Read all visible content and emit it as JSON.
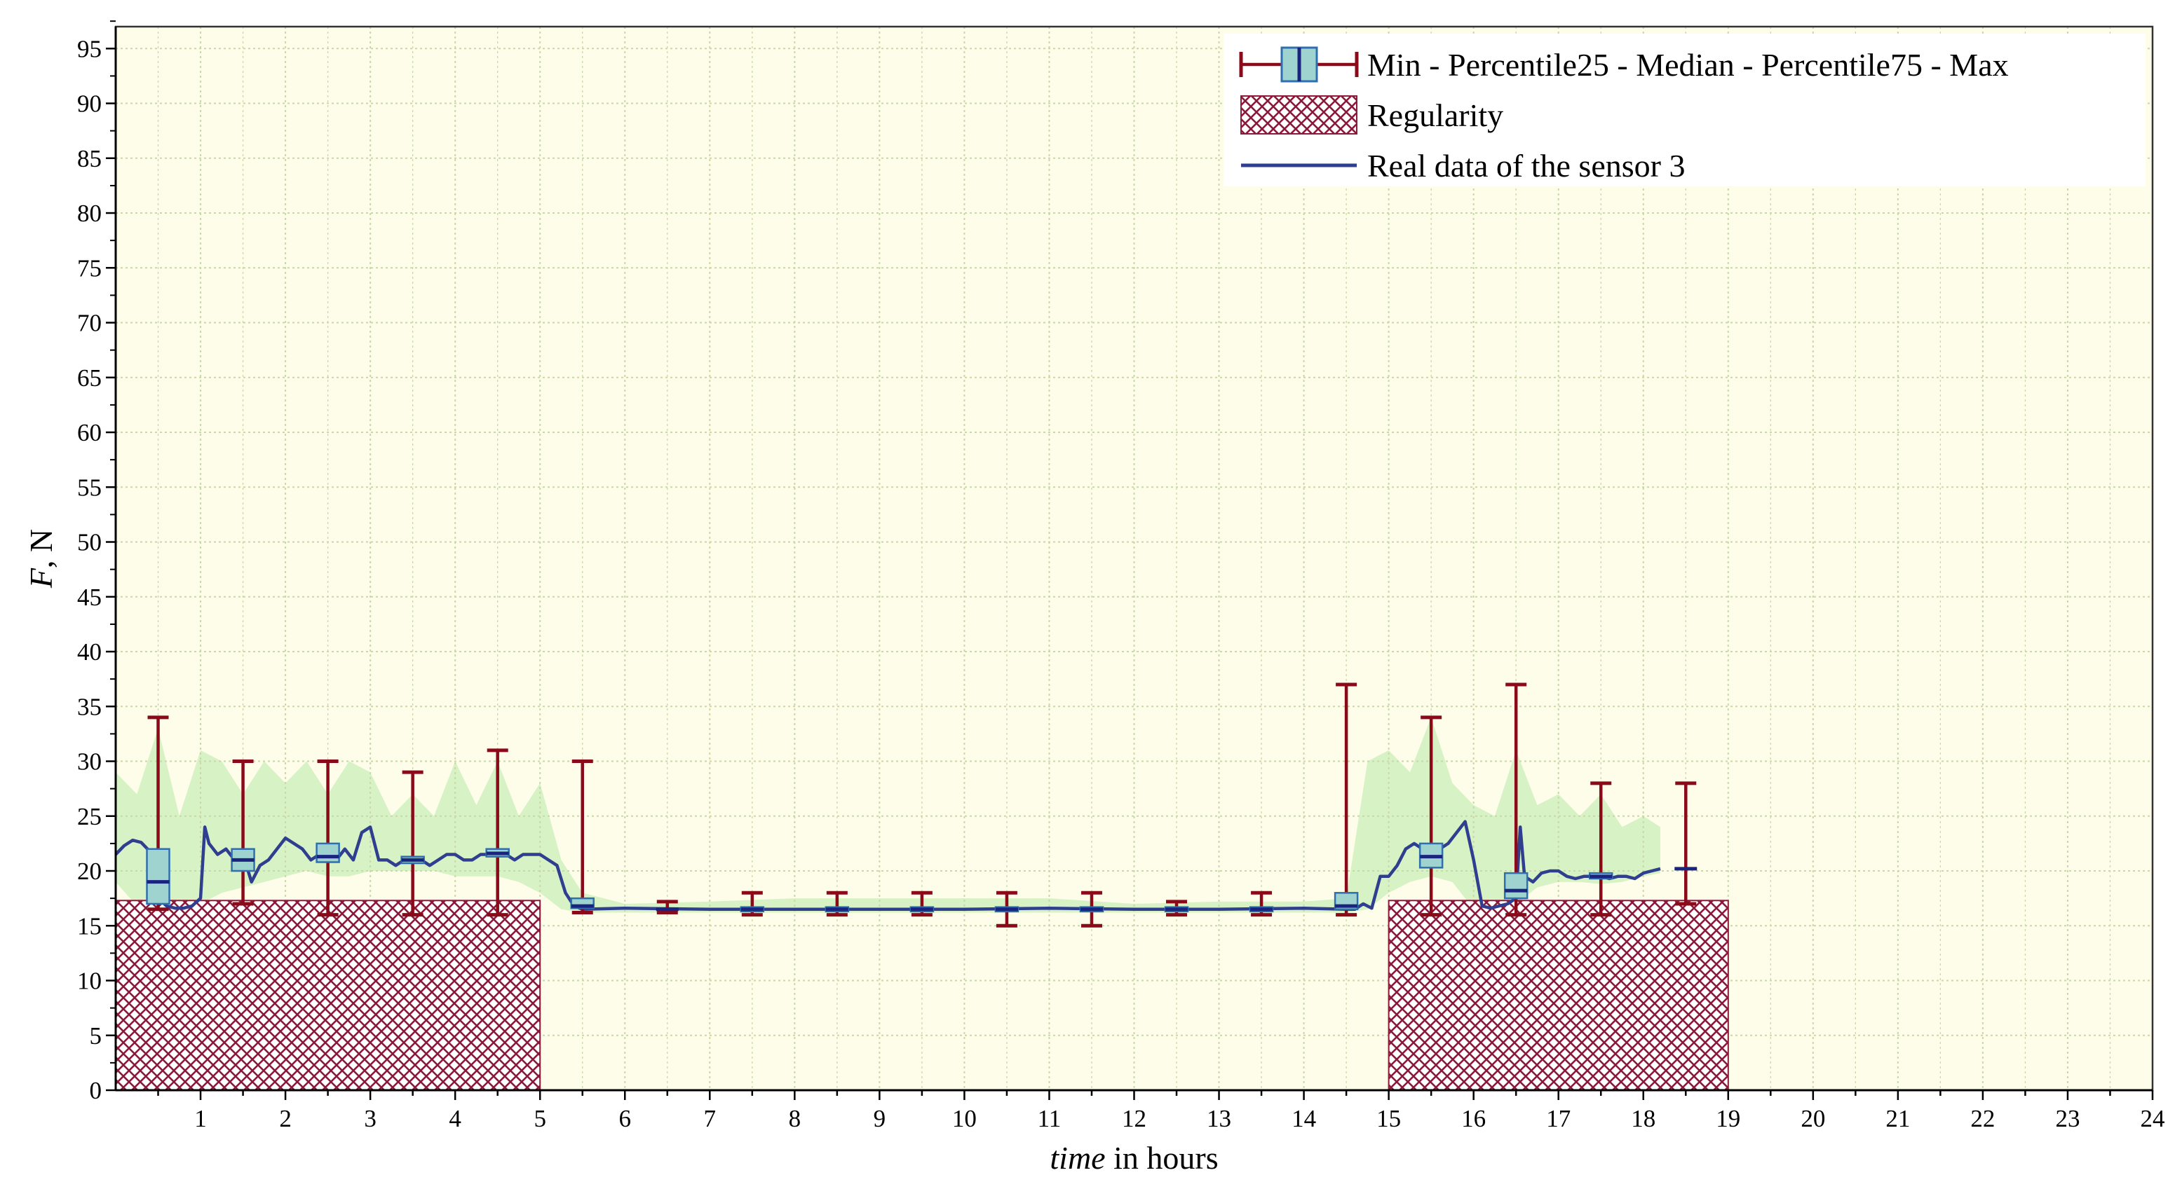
{
  "chart_data": {
    "type": "box+area+line",
    "xlabel_italic": "time",
    "xlabel_rest": " in hours",
    "ylabel_italic": "F",
    "ylabel_rest": ", N",
    "xlim": [
      0,
      24
    ],
    "ylim": [
      0,
      97
    ],
    "x_ticks": [
      1,
      2,
      3,
      4,
      5,
      6,
      7,
      8,
      9,
      10,
      11,
      12,
      13,
      14,
      15,
      16,
      17,
      18,
      19,
      20,
      21,
      22,
      23,
      24
    ],
    "y_ticks": [
      0,
      5,
      10,
      15,
      20,
      25,
      30,
      35,
      40,
      45,
      50,
      55,
      60,
      65,
      70,
      75,
      80,
      85,
      90,
      95
    ],
    "grid": true,
    "legend_placement": "top-right",
    "legend": [
      {
        "key": "box",
        "label": "Min - Percentile25 - Median - Percentile75 - Max"
      },
      {
        "key": "regularity",
        "label": "Regularity"
      },
      {
        "key": "line",
        "label": "Real data of the sensor 3"
      }
    ],
    "colors": {
      "background": "#fdfde9",
      "grid": "#c9d8a9",
      "whisker": "#8b0a1a",
      "box_fill": "#9fd3cf",
      "box_stroke": "#2f6fb0",
      "median": "#1a237e",
      "sensor_line": "#2f3e8f",
      "range_area": "#d7f2c4",
      "hatch": "#8b1a3a"
    },
    "regularity": [
      {
        "x0": 0,
        "x1": 5,
        "value": 17.3
      },
      {
        "x0": 15,
        "x1": 19,
        "value": 17.3
      }
    ],
    "boxes": [
      {
        "x": 0.5,
        "min": 16.5,
        "q1": 17.0,
        "median": 19.0,
        "q3": 22.0,
        "max": 34.0
      },
      {
        "x": 1.5,
        "min": 17.0,
        "q1": 20.0,
        "median": 21.0,
        "q3": 22.0,
        "max": 30.0
      },
      {
        "x": 2.5,
        "min": 16.0,
        "q1": 20.8,
        "median": 21.3,
        "q3": 22.5,
        "max": 30.0
      },
      {
        "x": 3.5,
        "min": 16.0,
        "q1": 20.7,
        "median": 21.0,
        "q3": 21.3,
        "max": 29.0
      },
      {
        "x": 4.5,
        "min": 16.0,
        "q1": 21.3,
        "median": 21.6,
        "q3": 22.0,
        "max": 31.0
      },
      {
        "x": 5.5,
        "min": 16.2,
        "q1": 16.6,
        "median": 16.8,
        "q3": 17.5,
        "max": 30.0
      },
      {
        "x": 6.5,
        "min": 16.2,
        "q1": 16.4,
        "median": 16.5,
        "q3": 16.6,
        "max": 17.2
      },
      {
        "x": 7.5,
        "min": 16.0,
        "q1": 16.3,
        "median": 16.5,
        "q3": 16.7,
        "max": 18.0
      },
      {
        "x": 8.5,
        "min": 16.0,
        "q1": 16.3,
        "median": 16.5,
        "q3": 16.7,
        "max": 18.0
      },
      {
        "x": 9.5,
        "min": 16.0,
        "q1": 16.3,
        "median": 16.5,
        "q3": 16.7,
        "max": 18.0
      },
      {
        "x": 10.5,
        "min": 15.0,
        "q1": 16.3,
        "median": 16.5,
        "q3": 16.7,
        "max": 18.0
      },
      {
        "x": 11.5,
        "min": 15.0,
        "q1": 16.3,
        "median": 16.5,
        "q3": 16.7,
        "max": 18.0
      },
      {
        "x": 12.5,
        "min": 16.0,
        "q1": 16.3,
        "median": 16.5,
        "q3": 16.7,
        "max": 17.2
      },
      {
        "x": 13.5,
        "min": 16.0,
        "q1": 16.3,
        "median": 16.5,
        "q3": 16.7,
        "max": 18.0
      },
      {
        "x": 14.5,
        "min": 16.0,
        "q1": 16.5,
        "median": 16.8,
        "q3": 18.0,
        "max": 37.0
      },
      {
        "x": 15.5,
        "min": 16.0,
        "q1": 20.3,
        "median": 21.3,
        "q3": 22.5,
        "max": 34.0
      },
      {
        "x": 16.5,
        "min": 16.0,
        "q1": 17.5,
        "median": 18.2,
        "q3": 19.8,
        "max": 37.0
      },
      {
        "x": 17.5,
        "min": 16.0,
        "q1": 19.3,
        "median": 19.5,
        "q3": 19.8,
        "max": 28.0
      },
      {
        "x": 18.5,
        "min": 17.0,
        "q1": 20.2,
        "median": 20.2,
        "q3": 20.2,
        "max": 28.0
      }
    ],
    "range_area": {
      "x": [
        0,
        0.25,
        0.5,
        0.75,
        1.0,
        1.25,
        1.5,
        1.75,
        2.0,
        2.25,
        2.5,
        2.75,
        3.0,
        3.25,
        3.5,
        3.75,
        4.0,
        4.25,
        4.5,
        4.75,
        5.0,
        5.25,
        5.5,
        6.0,
        7.0,
        8.0,
        9.0,
        10.0,
        11.0,
        12.0,
        13.0,
        14.0,
        14.5,
        14.75,
        15.0,
        15.25,
        15.5,
        15.75,
        16.0,
        16.25,
        16.5,
        16.75,
        17.0,
        17.25,
        17.5,
        17.75,
        18.0,
        18.2
      ],
      "low": [
        19.0,
        16.8,
        16.5,
        16.5,
        17.0,
        18.0,
        18.5,
        19.0,
        19.5,
        20.0,
        19.5,
        19.5,
        20.0,
        20.0,
        20.0,
        20.0,
        19.5,
        19.5,
        19.5,
        19.0,
        18.0,
        16.5,
        16.2,
        16.2,
        16.2,
        16.2,
        16.2,
        16.2,
        16.2,
        16.2,
        16.2,
        16.2,
        16.2,
        16.5,
        18.0,
        19.0,
        19.5,
        19.0,
        16.5,
        16.5,
        17.0,
        18.5,
        19.0,
        19.0,
        18.8,
        19.0,
        19.5,
        19.8
      ],
      "high": [
        29.0,
        27.0,
        33.0,
        25.0,
        31.0,
        30.0,
        27.0,
        30.0,
        28.0,
        30.0,
        27.0,
        30.0,
        29.0,
        25.0,
        27.0,
        25.0,
        30.0,
        26.0,
        30.0,
        25.0,
        28.0,
        21.0,
        18.0,
        17.0,
        17.2,
        17.5,
        17.5,
        17.5,
        17.5,
        17.0,
        17.2,
        17.2,
        17.5,
        30.0,
        31.0,
        29.0,
        34.0,
        28.0,
        26.0,
        25.0,
        31.0,
        26.0,
        27.0,
        25.0,
        27.0,
        24.0,
        25.0,
        24.0
      ]
    },
    "sensor_line": {
      "x": [
        0,
        0.1,
        0.2,
        0.3,
        0.4,
        0.5,
        0.6,
        0.7,
        0.8,
        0.9,
        1.0,
        1.05,
        1.1,
        1.2,
        1.3,
        1.4,
        1.5,
        1.6,
        1.7,
        1.8,
        1.9,
        2.0,
        2.1,
        2.2,
        2.3,
        2.4,
        2.5,
        2.6,
        2.7,
        2.8,
        2.9,
        3.0,
        3.1,
        3.2,
        3.3,
        3.4,
        3.5,
        3.6,
        3.7,
        3.8,
        3.9,
        4.0,
        4.1,
        4.2,
        4.3,
        4.4,
        4.5,
        4.6,
        4.7,
        4.8,
        4.9,
        5.0,
        5.1,
        5.2,
        5.3,
        5.4,
        5.5,
        6.0,
        7.0,
        8.0,
        9.0,
        10.0,
        11.0,
        12.0,
        13.0,
        14.0,
        14.5,
        14.6,
        14.7,
        14.8,
        14.9,
        15.0,
        15.1,
        15.2,
        15.3,
        15.4,
        15.5,
        15.6,
        15.7,
        15.8,
        15.9,
        16.0,
        16.1,
        16.2,
        16.3,
        16.4,
        16.5,
        16.55,
        16.6,
        16.7,
        16.8,
        16.9,
        17.0,
        17.1,
        17.2,
        17.3,
        17.4,
        17.5,
        17.6,
        17.7,
        17.8,
        17.9,
        18.0,
        18.1,
        18.2
      ],
      "y": [
        21.5,
        22.3,
        22.8,
        22.6,
        21.8,
        17.5,
        16.8,
        16.6,
        16.6,
        16.8,
        17.5,
        24.0,
        22.5,
        21.5,
        22.0,
        21.0,
        21.5,
        19.0,
        20.5,
        21.0,
        22.0,
        23.0,
        22.5,
        22.0,
        21.0,
        21.5,
        21.5,
        21.0,
        22.0,
        21.0,
        23.5,
        24.0,
        21.0,
        21.0,
        20.5,
        21.0,
        21.0,
        21.0,
        20.5,
        21.0,
        21.5,
        21.5,
        21.0,
        21.0,
        21.5,
        21.5,
        22.0,
        21.5,
        21.0,
        21.5,
        21.5,
        21.5,
        21.0,
        20.5,
        18.0,
        16.8,
        16.5,
        16.6,
        16.5,
        16.5,
        16.5,
        16.5,
        16.6,
        16.5,
        16.5,
        16.6,
        16.5,
        16.5,
        17.0,
        16.6,
        19.5,
        19.5,
        20.5,
        22.0,
        22.5,
        22.0,
        21.5,
        22.0,
        22.5,
        23.5,
        24.5,
        21.0,
        16.8,
        16.6,
        16.8,
        17.0,
        17.5,
        24.0,
        19.5,
        19.0,
        19.8,
        20.0,
        20.0,
        19.5,
        19.3,
        19.5,
        19.5,
        19.5,
        19.3,
        19.5,
        19.5,
        19.3,
        19.8,
        20.0,
        20.2
      ]
    }
  }
}
